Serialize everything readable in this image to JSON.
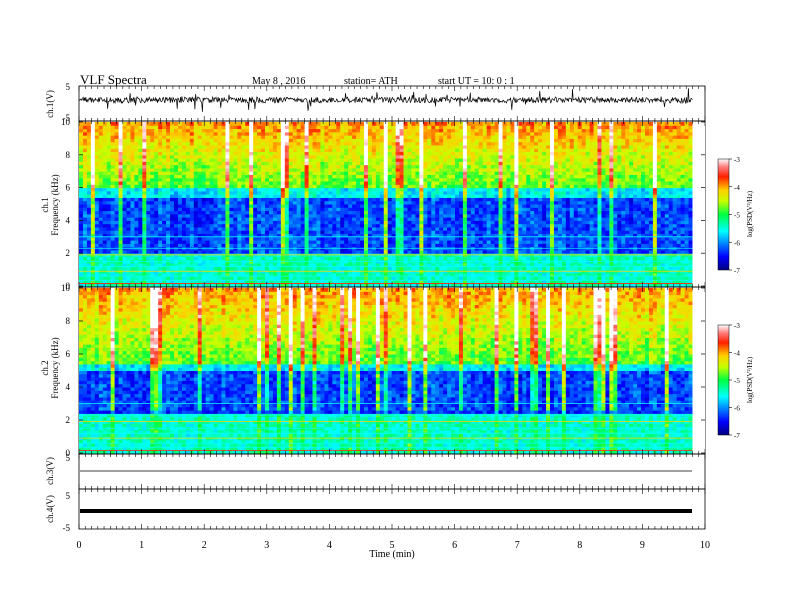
{
  "header": {
    "title": "VLF Spectra",
    "date": "May 8 , 2016",
    "station": "station= ATH",
    "start": "start UT =   10: 0 : 1"
  },
  "chart_data": [
    {
      "type": "line",
      "panel": "ch1_waveform",
      "ylabel": "ch.1(V)",
      "ylim": [
        -5,
        5
      ],
      "yticks": [
        "5",
        "-5"
      ],
      "description_level": 0.5
    },
    {
      "type": "heatmap",
      "panel": "ch1_spectrogram",
      "ylabel": [
        "ch.1",
        "Frequency (kHz)"
      ],
      "ylim": [
        0,
        10
      ],
      "yticks": [
        "0",
        "2",
        "4",
        "6",
        "8",
        "10"
      ],
      "colorbar": {
        "label": "log(PSD(V²/Hz)",
        "range": [
          -7,
          -3
        ],
        "ticks": [
          "-3",
          "-4",
          "-5",
          "-6",
          "-7"
        ]
      },
      "noise_floor_band_khz": [
        2,
        5.5
      ],
      "hiss_band_khz": [
        6,
        10
      ]
    },
    {
      "type": "heatmap",
      "panel": "ch2_spectrogram",
      "ylabel": [
        "ch.2",
        "Frequency (kHz)"
      ],
      "ylim": [
        0,
        10
      ],
      "yticks": [
        "0",
        "2",
        "4",
        "6",
        "8",
        "10"
      ],
      "colorbar": {
        "label": "log(PSD(V²/Hz)",
        "range": [
          -7,
          -3
        ],
        "ticks": [
          "-3",
          "-4",
          "-5",
          "-6",
          "-7"
        ]
      },
      "noise_floor_band_khz": [
        2.5,
        5
      ],
      "hiss_band_khz": [
        5.5,
        10
      ]
    },
    {
      "type": "line",
      "panel": "ch3_waveform",
      "ylabel": "ch.3(V)",
      "ylim": [
        -5,
        5
      ],
      "yticks": [
        "5"
      ],
      "level": 0
    },
    {
      "type": "line",
      "panel": "ch4_waveform",
      "ylabel": "ch.4(V)",
      "ylim": [
        -5,
        5
      ],
      "yticks": [
        "5",
        "-5"
      ],
      "level": 0
    }
  ],
  "xaxis": {
    "label": "Time (min)",
    "xlim": [
      0,
      10
    ],
    "data_end_min": 9.8,
    "ticks": [
      "0",
      "1",
      "2",
      "3",
      "4",
      "5",
      "6",
      "7",
      "8",
      "9",
      "10"
    ]
  }
}
